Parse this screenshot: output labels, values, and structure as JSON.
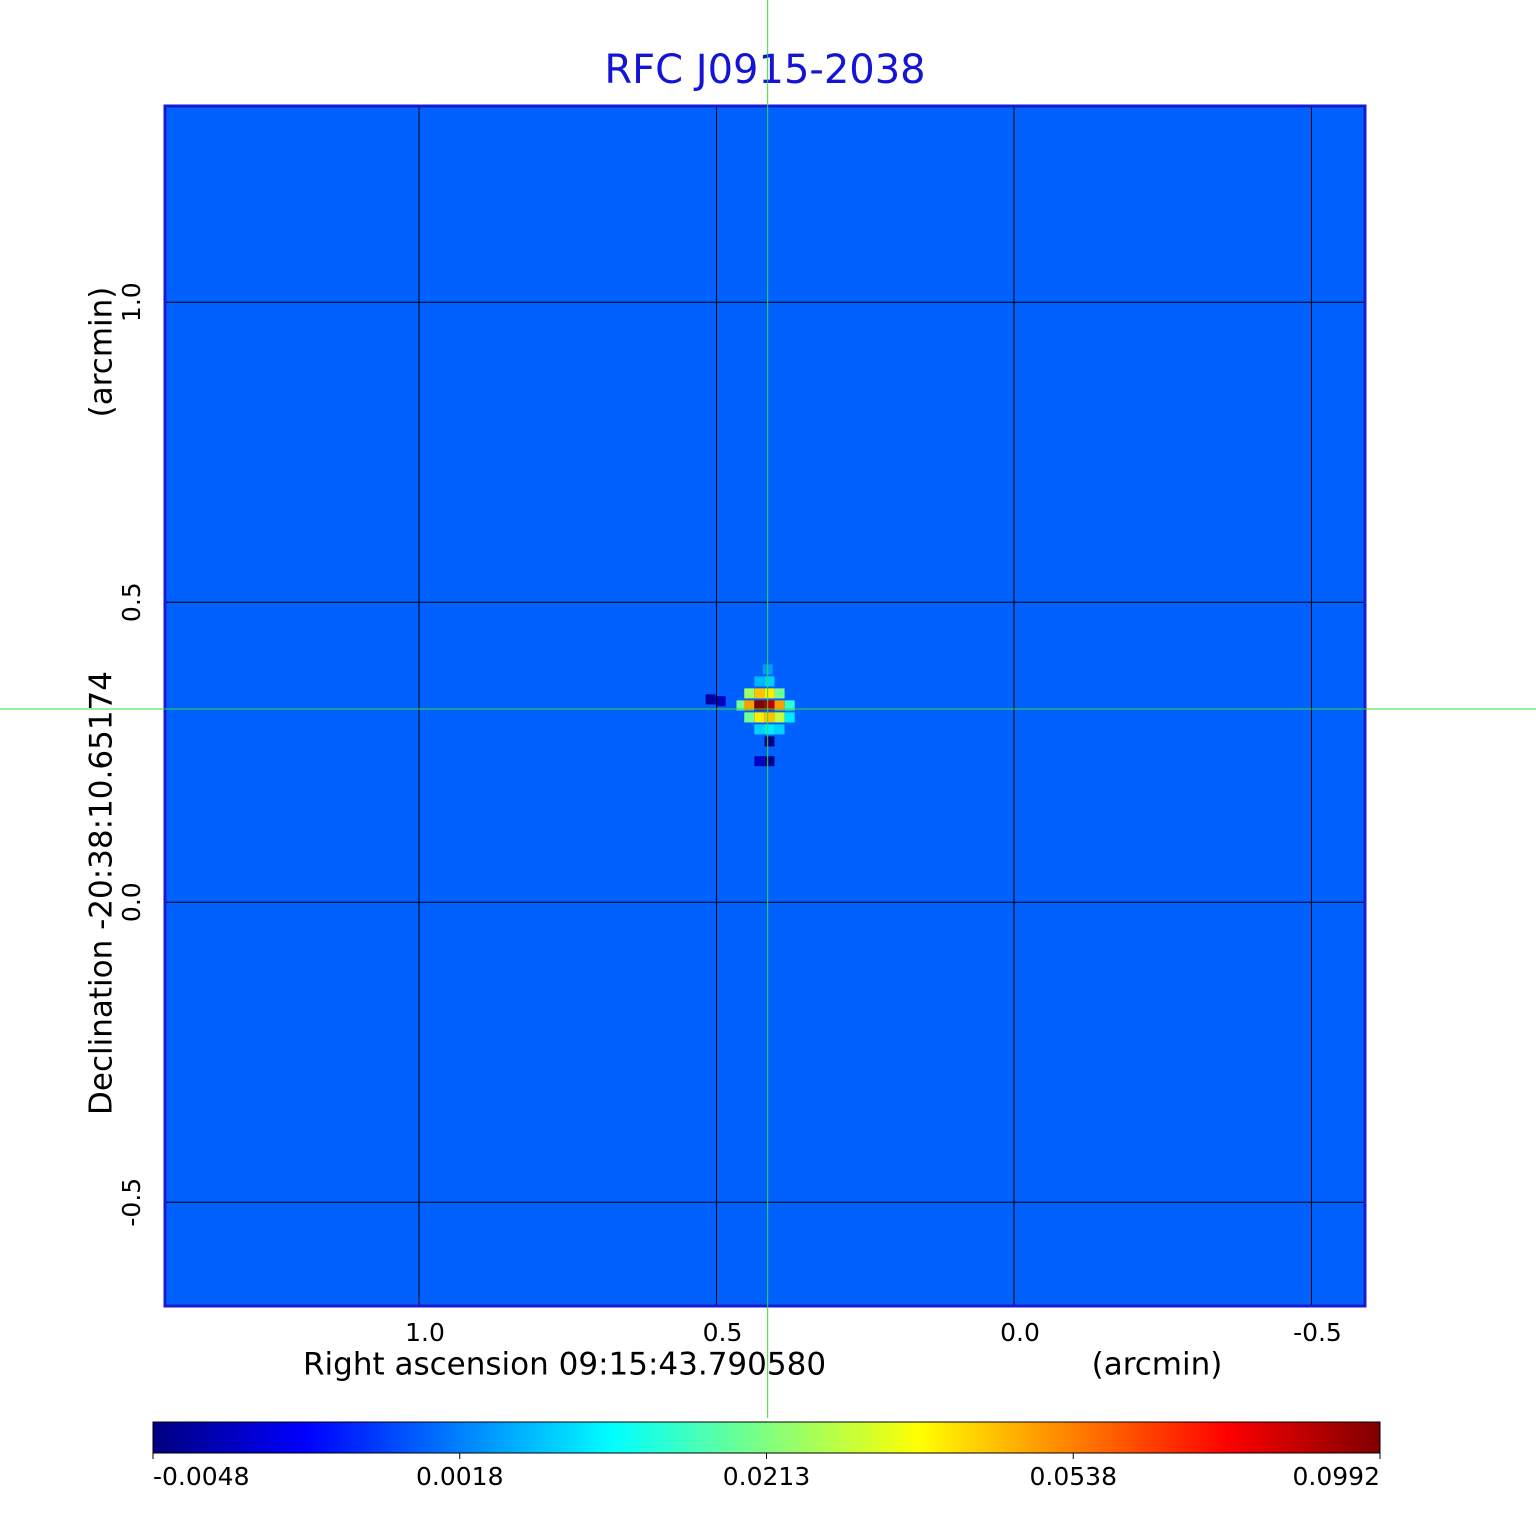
{
  "chart_data": {
    "type": "image",
    "title": "RFC J0915-2038",
    "xlabel": "Right ascension  09:15:43.790580",
    "xunit": "(arcmin)",
    "ylabel": "Declination  -20:38:10.65174",
    "yunit": "(arcmin)",
    "xlim": [
      1.427,
      -0.59
    ],
    "ylim": [
      -0.673,
      1.327
    ],
    "xticks": [
      {
        "value": 1.0,
        "label": "1.0"
      },
      {
        "value": 0.5,
        "label": "0.5"
      },
      {
        "value": 0.0,
        "label": "0.0"
      },
      {
        "value": -0.5,
        "label": "-0.5"
      }
    ],
    "yticks": [
      {
        "value": -0.5,
        "label": "-0.5"
      },
      {
        "value": 0.0,
        "label": "0.0"
      },
      {
        "value": 0.5,
        "label": "0.5"
      },
      {
        "value": 1.0,
        "label": "1.0"
      }
    ],
    "grid": true,
    "colormap": "jet",
    "colorbar_ticks": [
      -0.0048,
      0.0018,
      0.0213,
      0.0538,
      0.0992
    ],
    "background": 0.001,
    "pixel_size": 0.0168,
    "crosshair": {
      "x": 0.414,
      "y": 0.322,
      "color": "#33dd33"
    },
    "pixels": [
      {
        "x": 0.414,
        "y": 0.388,
        "value": 0.004
      },
      {
        "x": 0.428,
        "y": 0.368,
        "value": 0.006
      },
      {
        "x": 0.411,
        "y": 0.368,
        "value": 0.008
      },
      {
        "x": 0.445,
        "y": 0.348,
        "value": 0.025
      },
      {
        "x": 0.428,
        "y": 0.348,
        "value": 0.045
      },
      {
        "x": 0.411,
        "y": 0.348,
        "value": 0.04
      },
      {
        "x": 0.394,
        "y": 0.348,
        "value": 0.02
      },
      {
        "x": 0.458,
        "y": 0.328,
        "value": 0.02
      },
      {
        "x": 0.445,
        "y": 0.328,
        "value": 0.05
      },
      {
        "x": 0.428,
        "y": 0.328,
        "value": 0.099
      },
      {
        "x": 0.411,
        "y": 0.328,
        "value": 0.09
      },
      {
        "x": 0.394,
        "y": 0.328,
        "value": 0.05
      },
      {
        "x": 0.377,
        "y": 0.328,
        "value": 0.015
      },
      {
        "x": 0.445,
        "y": 0.308,
        "value": 0.02
      },
      {
        "x": 0.428,
        "y": 0.308,
        "value": 0.04
      },
      {
        "x": 0.411,
        "y": 0.308,
        "value": 0.045
      },
      {
        "x": 0.394,
        "y": 0.308,
        "value": 0.03
      },
      {
        "x": 0.377,
        "y": 0.308,
        "value": 0.01
      },
      {
        "x": 0.428,
        "y": 0.288,
        "value": 0.008
      },
      {
        "x": 0.411,
        "y": 0.288,
        "value": 0.01
      },
      {
        "x": 0.394,
        "y": 0.288,
        "value": 0.008
      },
      {
        "x": 0.411,
        "y": 0.268,
        "value": -0.0048
      },
      {
        "x": 0.411,
        "y": 0.235,
        "value": -0.0045
      },
      {
        "x": 0.428,
        "y": 0.235,
        "value": -0.003
      },
      {
        "x": 0.51,
        "y": 0.338,
        "value": -0.004
      },
      {
        "x": 0.493,
        "y": 0.335,
        "value": -0.003
      }
    ]
  }
}
